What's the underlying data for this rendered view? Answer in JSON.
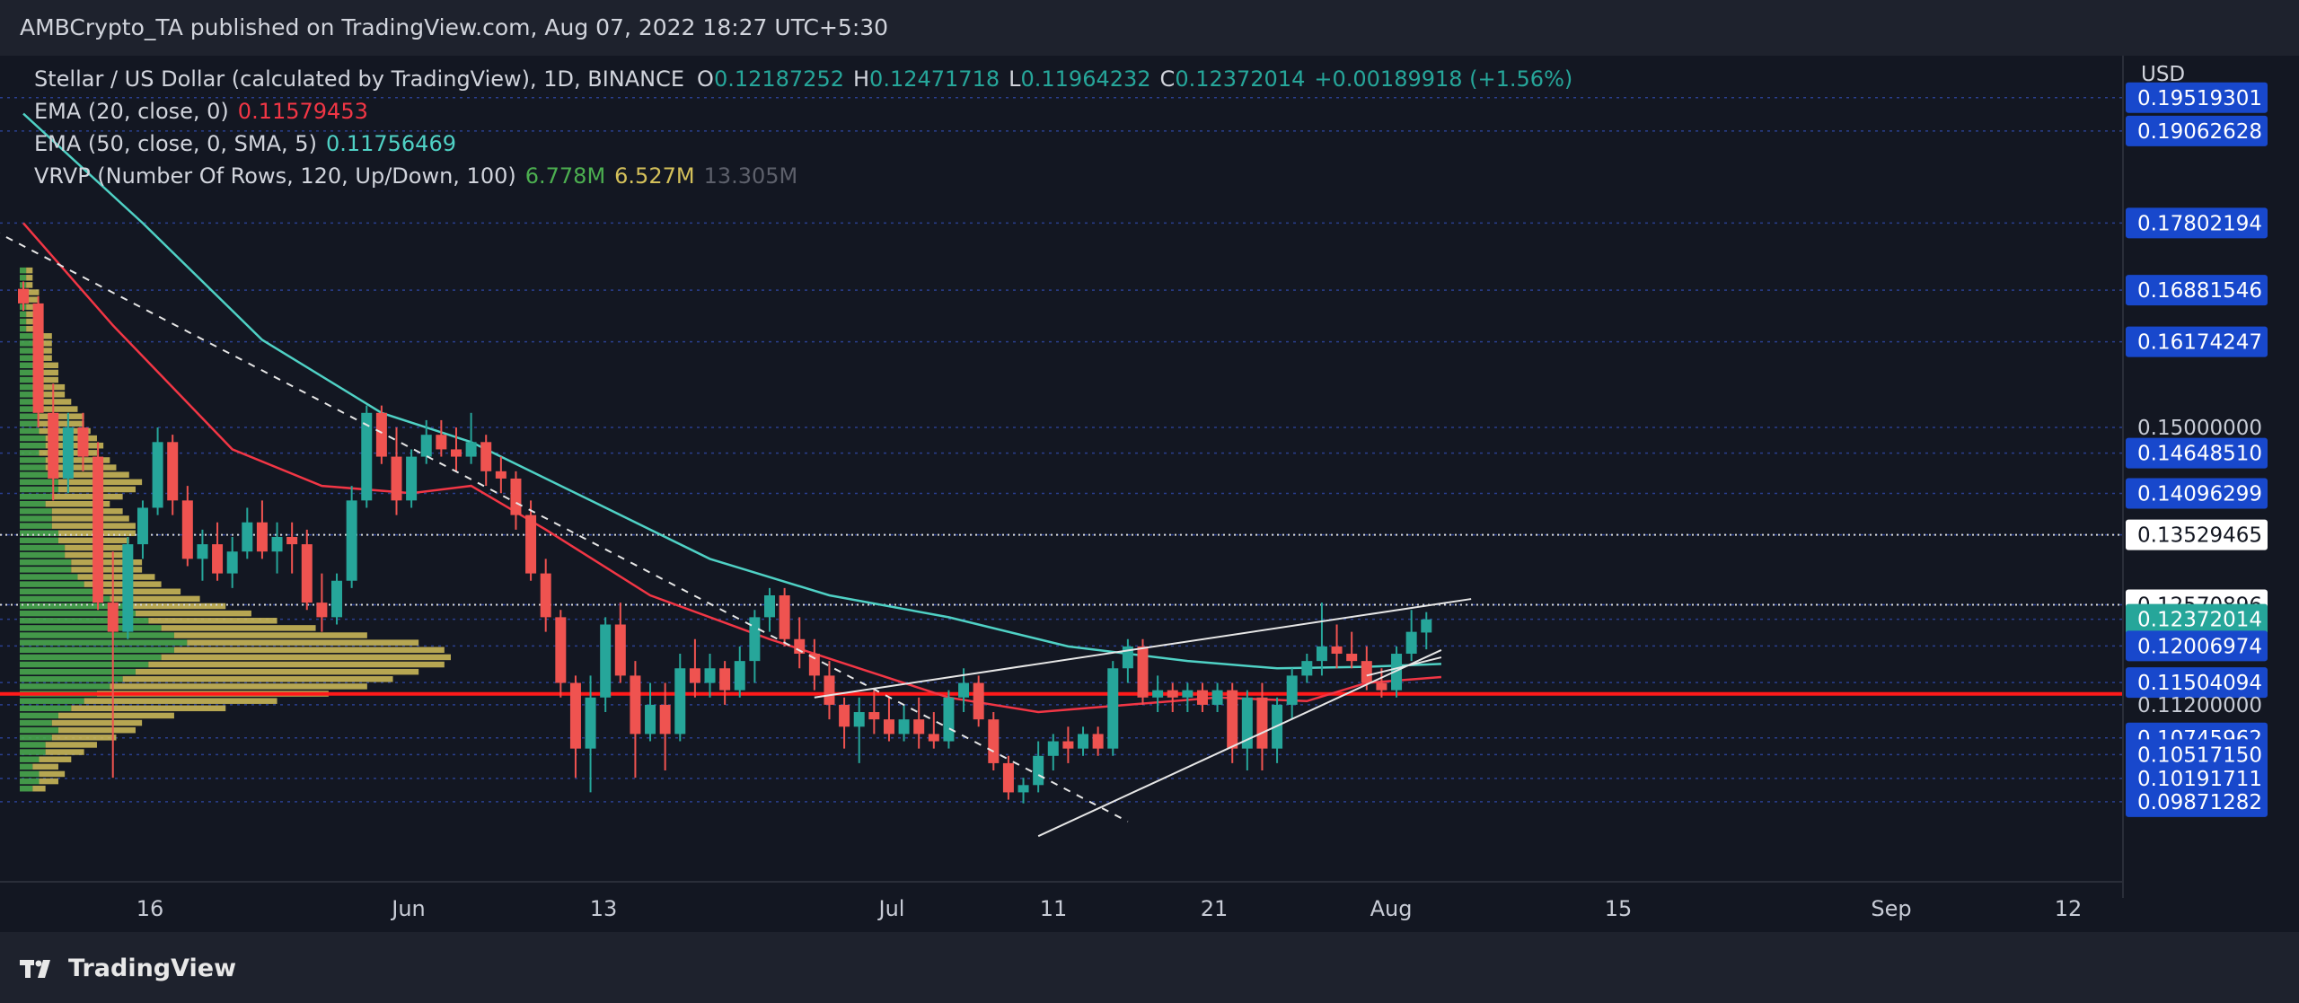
{
  "publisher": "AMBCrypto_TA published on TradingView.com, Aug 07, 2022 18:27 UTC+5:30",
  "brand": "TradingView",
  "currency_label": "USD",
  "legend": {
    "symbol": "Stellar / US Dollar (calculated by TradingView), 1D, BINANCE",
    "open_label": "O",
    "open": "0.12187252",
    "high_label": "H",
    "high": "0.12471718",
    "low_label": "L",
    "low": "0.11964232",
    "close_label": "C",
    "close": "0.12372014",
    "change": "+0.00189918 (+1.56%)",
    "ema20_label": "EMA (20, close, 0)",
    "ema20_value": "0.11579453",
    "ema50_label": "EMA (50, close, 0, SMA, 5)",
    "ema50_value": "0.11756469",
    "vrvp_label": "VRVP (Number Of Rows, 120, Up/Down, 100)",
    "vrvp_up": "6.778M",
    "vrvp_down": "6.527M",
    "vrvp_total": "13.305M"
  },
  "colors": {
    "background": "#131722",
    "up": "#26a69a",
    "down": "#ef5350",
    "ema20": "#f23645",
    "ema50": "#4fd1c5",
    "vol_up": "#4caf50",
    "vol_down": "#d4c05a",
    "support": "#ff1a1a",
    "label_blue": "#1848cc"
  },
  "chart_data": {
    "type": "candlestick",
    "x_tick_labels": [
      "16",
      "Jun",
      "13",
      "Jul",
      "11",
      "21",
      "Aug",
      "15",
      "Sep",
      "12"
    ],
    "price_labels": [
      {
        "value": 0.19519301,
        "text": "0.19519301",
        "style": "blue"
      },
      {
        "value": 0.19062628,
        "text": "0.19062628",
        "style": "blue"
      },
      {
        "value": 0.17802194,
        "text": "0.17802194",
        "style": "blue"
      },
      {
        "value": 0.16881546,
        "text": "0.16881546",
        "style": "blue"
      },
      {
        "value": 0.16174247,
        "text": "0.16174247",
        "style": "blue"
      },
      {
        "value": 0.15,
        "text": "0.15000000",
        "style": "plain"
      },
      {
        "value": 0.1464851,
        "text": "0.14648510",
        "style": "blue"
      },
      {
        "value": 0.14096299,
        "text": "0.14096299",
        "style": "blue"
      },
      {
        "value": 0.13529465,
        "text": "0.13529465",
        "style": "white"
      },
      {
        "value": 0.12570896,
        "text": "0.12570896",
        "style": "white"
      },
      {
        "value": 0.12372014,
        "text": "0.12372014",
        "style": "teal"
      },
      {
        "value": 0.12006974,
        "text": "0.12006974",
        "style": "blue"
      },
      {
        "value": 0.11504094,
        "text": "0.11504094",
        "style": "blue"
      },
      {
        "value": 0.112,
        "text": "0.11200000",
        "style": "plain"
      },
      {
        "value": 0.10745962,
        "text": "0.10745962",
        "style": "blue"
      },
      {
        "value": 0.1051715,
        "text": "0.10517150",
        "style": "blue"
      },
      {
        "value": 0.10191711,
        "text": "0.10191711",
        "style": "blue"
      },
      {
        "value": 0.09871282,
        "text": "0.09871282",
        "style": "blue"
      }
    ],
    "support_level": 0.1135,
    "resistance_levels": [
      0.13529465,
      0.12570896
    ],
    "candles": [
      {
        "o": 0.169,
        "h": 0.17,
        "l": 0.166,
        "c": 0.167
      },
      {
        "o": 0.167,
        "h": 0.168,
        "l": 0.15,
        "c": 0.152
      },
      {
        "o": 0.152,
        "h": 0.156,
        "l": 0.14,
        "c": 0.143
      },
      {
        "o": 0.143,
        "h": 0.152,
        "l": 0.141,
        "c": 0.15
      },
      {
        "o": 0.15,
        "h": 0.152,
        "l": 0.144,
        "c": 0.146
      },
      {
        "o": 0.146,
        "h": 0.148,
        "l": 0.125,
        "c": 0.126
      },
      {
        "o": 0.126,
        "h": 0.133,
        "l": 0.102,
        "c": 0.122
      },
      {
        "o": 0.122,
        "h": 0.135,
        "l": 0.121,
        "c": 0.134
      },
      {
        "o": 0.134,
        "h": 0.14,
        "l": 0.132,
        "c": 0.139
      },
      {
        "o": 0.139,
        "h": 0.15,
        "l": 0.138,
        "c": 0.148
      },
      {
        "o": 0.148,
        "h": 0.149,
        "l": 0.138,
        "c": 0.14
      },
      {
        "o": 0.14,
        "h": 0.142,
        "l": 0.131,
        "c": 0.132
      },
      {
        "o": 0.132,
        "h": 0.136,
        "l": 0.129,
        "c": 0.134
      },
      {
        "o": 0.134,
        "h": 0.137,
        "l": 0.129,
        "c": 0.13
      },
      {
        "o": 0.13,
        "h": 0.135,
        "l": 0.128,
        "c": 0.133
      },
      {
        "o": 0.133,
        "h": 0.139,
        "l": 0.132,
        "c": 0.137
      },
      {
        "o": 0.137,
        "h": 0.14,
        "l": 0.132,
        "c": 0.133
      },
      {
        "o": 0.133,
        "h": 0.137,
        "l": 0.13,
        "c": 0.135
      },
      {
        "o": 0.135,
        "h": 0.137,
        "l": 0.13,
        "c": 0.134
      },
      {
        "o": 0.134,
        "h": 0.136,
        "l": 0.125,
        "c": 0.126
      },
      {
        "o": 0.126,
        "h": 0.13,
        "l": 0.122,
        "c": 0.124
      },
      {
        "o": 0.124,
        "h": 0.13,
        "l": 0.123,
        "c": 0.129
      },
      {
        "o": 0.129,
        "h": 0.142,
        "l": 0.128,
        "c": 0.14
      },
      {
        "o": 0.14,
        "h": 0.153,
        "l": 0.139,
        "c": 0.152
      },
      {
        "o": 0.152,
        "h": 0.153,
        "l": 0.145,
        "c": 0.146
      },
      {
        "o": 0.146,
        "h": 0.15,
        "l": 0.138,
        "c": 0.14
      },
      {
        "o": 0.14,
        "h": 0.147,
        "l": 0.139,
        "c": 0.146
      },
      {
        "o": 0.146,
        "h": 0.151,
        "l": 0.145,
        "c": 0.149
      },
      {
        "o": 0.149,
        "h": 0.151,
        "l": 0.146,
        "c": 0.147
      },
      {
        "o": 0.147,
        "h": 0.15,
        "l": 0.144,
        "c": 0.146
      },
      {
        "o": 0.146,
        "h": 0.152,
        "l": 0.145,
        "c": 0.148
      },
      {
        "o": 0.148,
        "h": 0.149,
        "l": 0.142,
        "c": 0.144
      },
      {
        "o": 0.144,
        "h": 0.146,
        "l": 0.141,
        "c": 0.143
      },
      {
        "o": 0.143,
        "h": 0.144,
        "l": 0.136,
        "c": 0.138
      },
      {
        "o": 0.138,
        "h": 0.14,
        "l": 0.129,
        "c": 0.13
      },
      {
        "o": 0.13,
        "h": 0.132,
        "l": 0.122,
        "c": 0.124
      },
      {
        "o": 0.124,
        "h": 0.125,
        "l": 0.113,
        "c": 0.115
      },
      {
        "o": 0.115,
        "h": 0.116,
        "l": 0.102,
        "c": 0.106
      },
      {
        "o": 0.106,
        "h": 0.116,
        "l": 0.1,
        "c": 0.113
      },
      {
        "o": 0.113,
        "h": 0.124,
        "l": 0.111,
        "c": 0.123
      },
      {
        "o": 0.123,
        "h": 0.126,
        "l": 0.115,
        "c": 0.116
      },
      {
        "o": 0.116,
        "h": 0.118,
        "l": 0.102,
        "c": 0.108
      },
      {
        "o": 0.108,
        "h": 0.115,
        "l": 0.107,
        "c": 0.112
      },
      {
        "o": 0.112,
        "h": 0.115,
        "l": 0.103,
        "c": 0.108
      },
      {
        "o": 0.108,
        "h": 0.119,
        "l": 0.107,
        "c": 0.117
      },
      {
        "o": 0.117,
        "h": 0.121,
        "l": 0.113,
        "c": 0.115
      },
      {
        "o": 0.115,
        "h": 0.119,
        "l": 0.113,
        "c": 0.117
      },
      {
        "o": 0.117,
        "h": 0.118,
        "l": 0.112,
        "c": 0.114
      },
      {
        "o": 0.114,
        "h": 0.12,
        "l": 0.113,
        "c": 0.118
      },
      {
        "o": 0.118,
        "h": 0.125,
        "l": 0.115,
        "c": 0.124
      },
      {
        "o": 0.124,
        "h": 0.128,
        "l": 0.122,
        "c": 0.127
      },
      {
        "o": 0.127,
        "h": 0.128,
        "l": 0.12,
        "c": 0.121
      },
      {
        "o": 0.121,
        "h": 0.124,
        "l": 0.117,
        "c": 0.119
      },
      {
        "o": 0.119,
        "h": 0.121,
        "l": 0.114,
        "c": 0.116
      },
      {
        "o": 0.116,
        "h": 0.118,
        "l": 0.11,
        "c": 0.112
      },
      {
        "o": 0.112,
        "h": 0.113,
        "l": 0.106,
        "c": 0.109
      },
      {
        "o": 0.109,
        "h": 0.113,
        "l": 0.104,
        "c": 0.111
      },
      {
        "o": 0.111,
        "h": 0.114,
        "l": 0.108,
        "c": 0.11
      },
      {
        "o": 0.11,
        "h": 0.113,
        "l": 0.107,
        "c": 0.108
      },
      {
        "o": 0.108,
        "h": 0.112,
        "l": 0.107,
        "c": 0.11
      },
      {
        "o": 0.11,
        "h": 0.113,
        "l": 0.106,
        "c": 0.108
      },
      {
        "o": 0.108,
        "h": 0.111,
        "l": 0.106,
        "c": 0.107
      },
      {
        "o": 0.107,
        "h": 0.114,
        "l": 0.106,
        "c": 0.113
      },
      {
        "o": 0.113,
        "h": 0.117,
        "l": 0.111,
        "c": 0.115
      },
      {
        "o": 0.115,
        "h": 0.116,
        "l": 0.109,
        "c": 0.11
      },
      {
        "o": 0.11,
        "h": 0.111,
        "l": 0.103,
        "c": 0.104
      },
      {
        "o": 0.104,
        "h": 0.105,
        "l": 0.099,
        "c": 0.1
      },
      {
        "o": 0.1,
        "h": 0.102,
        "l": 0.0985,
        "c": 0.101
      },
      {
        "o": 0.101,
        "h": 0.107,
        "l": 0.1,
        "c": 0.105
      },
      {
        "o": 0.105,
        "h": 0.108,
        "l": 0.103,
        "c": 0.107
      },
      {
        "o": 0.107,
        "h": 0.109,
        "l": 0.104,
        "c": 0.106
      },
      {
        "o": 0.106,
        "h": 0.109,
        "l": 0.105,
        "c": 0.108
      },
      {
        "o": 0.108,
        "h": 0.109,
        "l": 0.105,
        "c": 0.106
      },
      {
        "o": 0.106,
        "h": 0.118,
        "l": 0.105,
        "c": 0.117
      },
      {
        "o": 0.117,
        "h": 0.121,
        "l": 0.115,
        "c": 0.12
      },
      {
        "o": 0.12,
        "h": 0.121,
        "l": 0.112,
        "c": 0.113
      },
      {
        "o": 0.113,
        "h": 0.116,
        "l": 0.111,
        "c": 0.114
      },
      {
        "o": 0.114,
        "h": 0.115,
        "l": 0.111,
        "c": 0.113
      },
      {
        "o": 0.113,
        "h": 0.115,
        "l": 0.111,
        "c": 0.114
      },
      {
        "o": 0.114,
        "h": 0.115,
        "l": 0.111,
        "c": 0.112
      },
      {
        "o": 0.112,
        "h": 0.115,
        "l": 0.111,
        "c": 0.114
      },
      {
        "o": 0.114,
        "h": 0.115,
        "l": 0.104,
        "c": 0.106
      },
      {
        "o": 0.106,
        "h": 0.114,
        "l": 0.103,
        "c": 0.113
      },
      {
        "o": 0.113,
        "h": 0.115,
        "l": 0.103,
        "c": 0.106
      },
      {
        "o": 0.106,
        "h": 0.113,
        "l": 0.104,
        "c": 0.112
      },
      {
        "o": 0.112,
        "h": 0.117,
        "l": 0.11,
        "c": 0.116
      },
      {
        "o": 0.116,
        "h": 0.119,
        "l": 0.115,
        "c": 0.118
      },
      {
        "o": 0.118,
        "h": 0.126,
        "l": 0.116,
        "c": 0.12
      },
      {
        "o": 0.12,
        "h": 0.123,
        "l": 0.117,
        "c": 0.119
      },
      {
        "o": 0.119,
        "h": 0.122,
        "l": 0.117,
        "c": 0.118
      },
      {
        "o": 0.118,
        "h": 0.12,
        "l": 0.114,
        "c": 0.115
      },
      {
        "o": 0.115,
        "h": 0.117,
        "l": 0.113,
        "c": 0.114
      },
      {
        "o": 0.114,
        "h": 0.12,
        "l": 0.113,
        "c": 0.119
      },
      {
        "o": 0.119,
        "h": 0.125,
        "l": 0.118,
        "c": 0.122
      },
      {
        "o": 0.1219,
        "h": 0.1247,
        "l": 0.1196,
        "c": 0.1237
      }
    ],
    "ema20": [
      {
        "i": 0,
        "v": 0.178
      },
      {
        "i": 6,
        "v": 0.164
      },
      {
        "i": 14,
        "v": 0.147
      },
      {
        "i": 20,
        "v": 0.142
      },
      {
        "i": 26,
        "v": 0.141
      },
      {
        "i": 30,
        "v": 0.142
      },
      {
        "i": 35,
        "v": 0.136
      },
      {
        "i": 42,
        "v": 0.127
      },
      {
        "i": 50,
        "v": 0.121
      },
      {
        "i": 56,
        "v": 0.117
      },
      {
        "i": 62,
        "v": 0.113
      },
      {
        "i": 68,
        "v": 0.111
      },
      {
        "i": 74,
        "v": 0.112
      },
      {
        "i": 80,
        "v": 0.113
      },
      {
        "i": 86,
        "v": 0.1125
      },
      {
        "i": 90,
        "v": 0.115
      },
      {
        "i": 95,
        "v": 0.1158
      }
    ],
    "ema50": [
      {
        "i": 0,
        "v": 0.193
      },
      {
        "i": 8,
        "v": 0.178
      },
      {
        "i": 16,
        "v": 0.162
      },
      {
        "i": 24,
        "v": 0.152
      },
      {
        "i": 30,
        "v": 0.148
      },
      {
        "i": 38,
        "v": 0.14
      },
      {
        "i": 46,
        "v": 0.132
      },
      {
        "i": 54,
        "v": 0.127
      },
      {
        "i": 62,
        "v": 0.124
      },
      {
        "i": 70,
        "v": 0.12
      },
      {
        "i": 78,
        "v": 0.118
      },
      {
        "i": 84,
        "v": 0.117
      },
      {
        "i": 90,
        "v": 0.1172
      },
      {
        "i": 95,
        "v": 0.1176
      }
    ],
    "trendlines": [
      {
        "style": "dashed",
        "from": {
          "i": -2,
          "v": 0.177
        },
        "to": {
          "i": 74,
          "v": 0.096
        }
      },
      {
        "style": "solid",
        "from": {
          "i": 53,
          "v": 0.113
        },
        "to": {
          "i": 97,
          "v": 0.1265
        }
      },
      {
        "style": "solid",
        "from": {
          "i": 68,
          "v": 0.094
        },
        "to": {
          "i": 95,
          "v": 0.1195
        }
      },
      {
        "style": "solid",
        "from": {
          "i": 90,
          "v": 0.116
        },
        "to": {
          "i": 95,
          "v": 0.1185
        }
      }
    ],
    "volume_profile": {
      "price_min": 0.1,
      "price_max": 0.172,
      "rows": 72,
      "up": [
        2,
        3,
        3,
        2,
        3,
        4,
        4,
        5,
        6,
        5,
        6,
        8,
        10,
        12,
        14,
        16,
        18,
        20,
        22,
        24,
        26,
        24,
        22,
        20,
        18,
        16,
        14,
        12,
        10,
        9,
        8,
        8,
        7,
        7,
        6,
        6,
        5,
        5,
        5,
        4,
        5,
        6,
        6,
        5,
        4,
        4,
        3,
        4,
        4,
        3,
        3,
        3,
        3,
        2,
        2,
        2,
        2,
        2,
        2,
        2,
        2,
        2,
        2,
        1,
        1,
        1,
        1,
        1,
        1,
        1,
        1,
        1
      ],
      "down": [
        2,
        3,
        4,
        4,
        5,
        6,
        8,
        10,
        12,
        14,
        18,
        24,
        30,
        36,
        40,
        42,
        44,
        46,
        45,
        42,
        36,
        30,
        24,
        20,
        18,
        16,
        14,
        13,
        12,
        12,
        11,
        11,
        10,
        10,
        11,
        12,
        13,
        12,
        11,
        10,
        11,
        12,
        13,
        12,
        11,
        10,
        9,
        9,
        8,
        8,
        7,
        7,
        6,
        6,
        5,
        5,
        4,
        4,
        4,
        3,
        3,
        3,
        3,
        2,
        2,
        2,
        2,
        2,
        2,
        1,
        1,
        1
      ]
    }
  }
}
